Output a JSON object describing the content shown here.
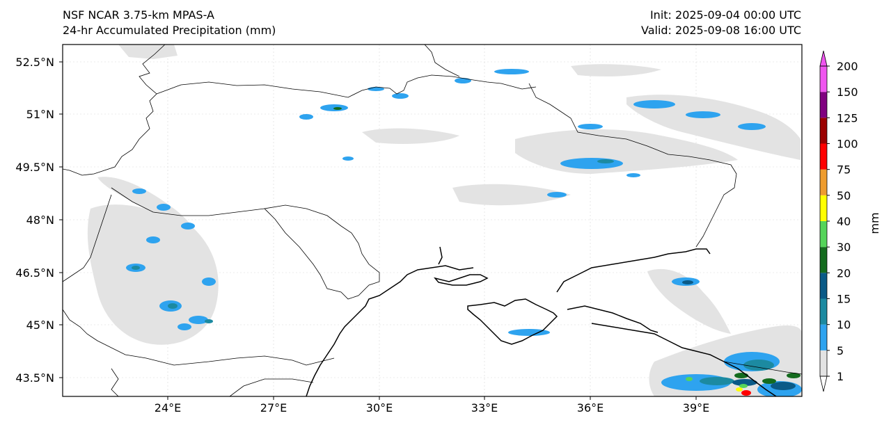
{
  "header": {
    "model": "NSF NCAR 3.75-km MPAS-A",
    "field": "24-hr Accumulated Precipitation (mm)",
    "init": "Init: 2025-09-04 00:00 UTC",
    "valid": "Valid: 2025-09-08 16:00 UTC"
  },
  "map": {
    "lon_ticks": [
      "24°E",
      "27°E",
      "30°E",
      "33°E",
      "36°E",
      "39°E"
    ],
    "lat_ticks": [
      "52.5°N",
      "51°N",
      "49.5°N",
      "48°N",
      "46.5°N",
      "45°N",
      "43.5°N"
    ]
  },
  "colorbar": {
    "unit": "mm",
    "levels": [
      "1",
      "5",
      "10",
      "15",
      "20",
      "30",
      "40",
      "50",
      "75",
      "100",
      "125",
      "150",
      "200"
    ],
    "colors": [
      "#e3e3e3",
      "#2ea3ef",
      "#1c8aa1",
      "#0a5a87",
      "#146b1e",
      "#55d45a",
      "#ffff00",
      "#ee9c2e",
      "#ff0000",
      "#9b0000",
      "#800080",
      "#ef55ef"
    ],
    "extend": "both"
  },
  "colors": {
    "trace_light": "#e3e3e3",
    "rain_5": "#2ea3ef",
    "rain_10": "#1c8aa1",
    "rain_15": "#0a5a87",
    "rain_20": "#146b1e",
    "rain_30": "#55d45a",
    "rain_40": "#ffff00",
    "rain_75": "#ff0000"
  }
}
